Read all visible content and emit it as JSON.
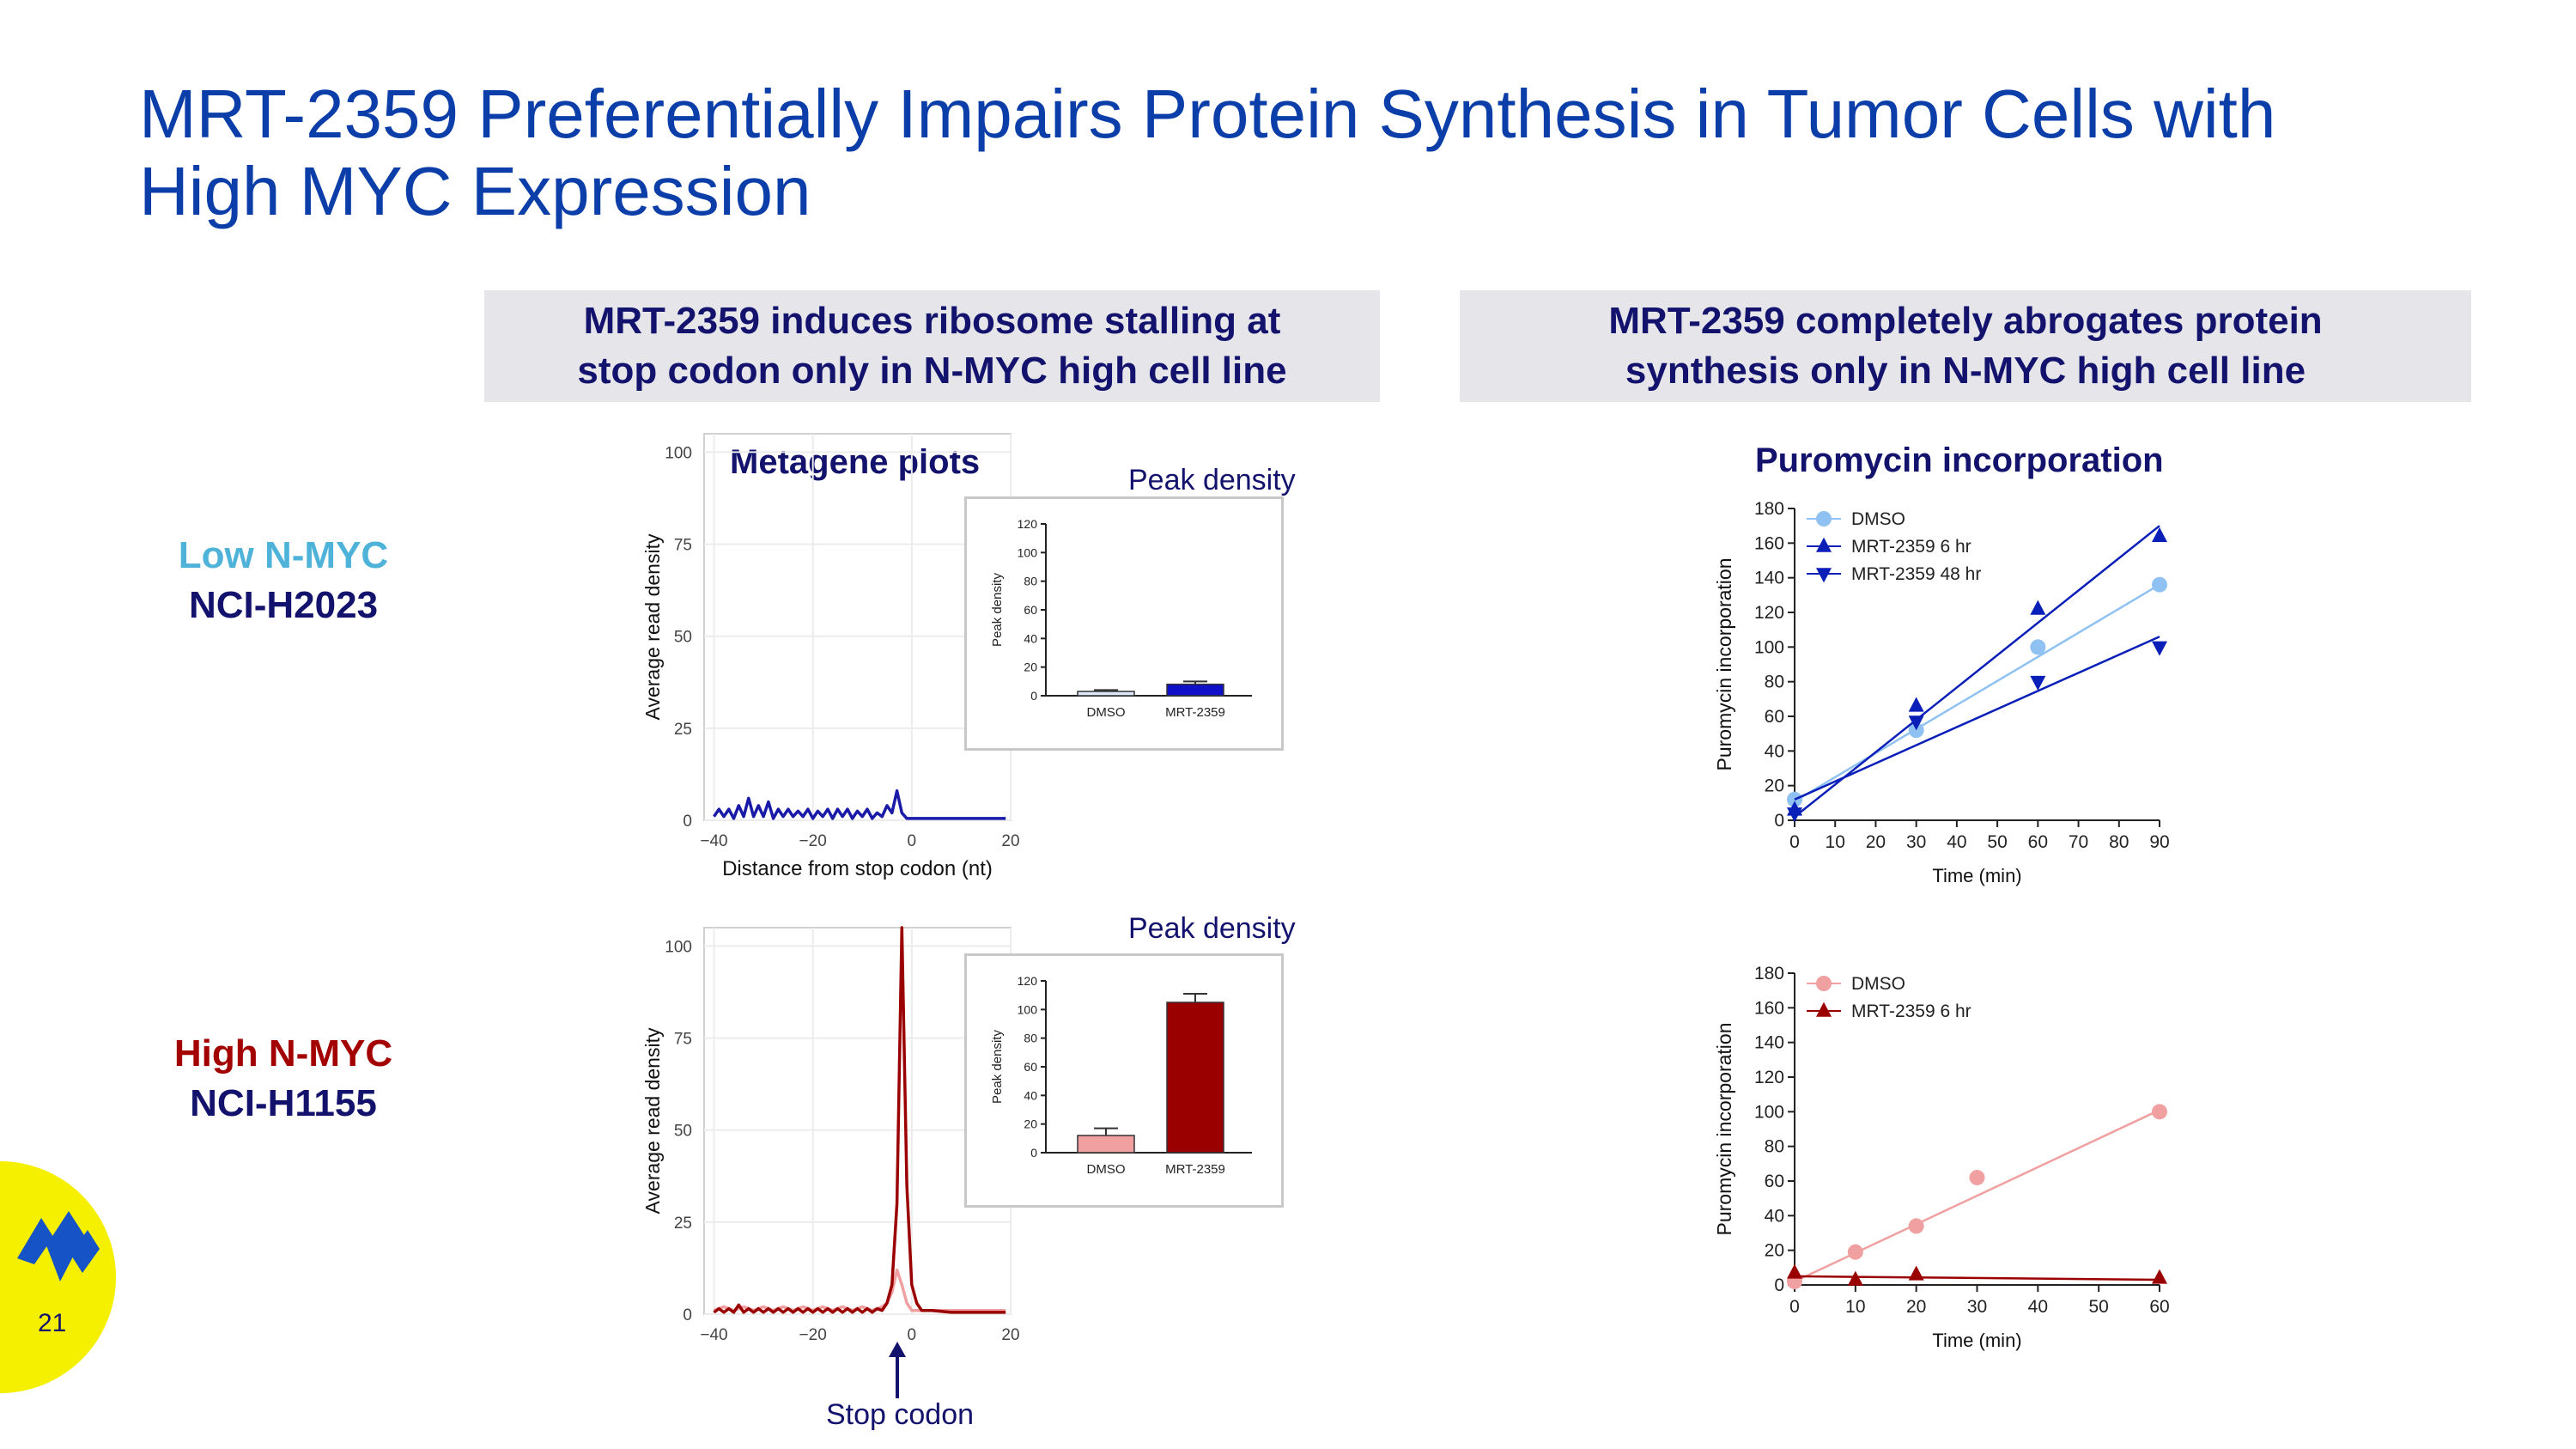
{
  "slide": {
    "title_line1": "MRT-2359 Preferentially Impairs Protein Synthesis in Tumor Cells with",
    "title_line2": "High MYC Expression",
    "page_number": "21",
    "logo_icon": "company-logo-icon"
  },
  "panels": {
    "left_header_line1": "MRT-2359 induces ribosome stalling at",
    "left_header_line2": "stop codon only in N-MYC high cell line",
    "right_header_line1": "MRT-2359 completely abrogates protein",
    "right_header_line2": "synthesis only in N-MYC high cell line"
  },
  "rows": {
    "low_label": "Low N-MYC",
    "low_cell_line": "NCI-H2023",
    "high_label": "High N-MYC",
    "high_cell_line": "NCI-H1155"
  },
  "labels": {
    "metagene_title": "Metagene plots",
    "peak_density_title_top": "Peak density",
    "peak_density_title_bottom": "Peak density",
    "puromycin_title": "Puromycin incorporation",
    "stop_codon_label": "Stop codon"
  },
  "chart_data": [
    {
      "id": "metagene_low",
      "type": "line",
      "title": "Metagene plots",
      "xlabel": "Distance from stop codon (nt)",
      "ylabel": "Average read density",
      "xlim": [
        -42,
        20
      ],
      "ylim": [
        0,
        105
      ],
      "xticks": [
        -40,
        -20,
        0,
        20
      ],
      "yticks": [
        0,
        25,
        50,
        75,
        100
      ],
      "series": [
        {
          "name": "MRT-2359",
          "color": "#1a1aa8",
          "x": [
            -40,
            -39,
            -38,
            -37,
            -36,
            -35,
            -34,
            -33,
            -32,
            -31,
            -30,
            -29,
            -28,
            -27,
            -26,
            -25,
            -24,
            -23,
            -22,
            -21,
            -20,
            -19,
            -18,
            -17,
            -16,
            -15,
            -14,
            -13,
            -12,
            -11,
            -10,
            -9,
            -8,
            -7,
            -6,
            -5,
            -4,
            -3,
            -2,
            -1,
            0,
            1,
            2,
            4,
            8,
            12,
            16,
            19
          ],
          "y": [
            1,
            3,
            1,
            3,
            0.5,
            4,
            1,
            6,
            1,
            4,
            1,
            5,
            0.5,
            3,
            1,
            3,
            1,
            2.5,
            1,
            3,
            0.5,
            2.5,
            1,
            3,
            0.5,
            3,
            1,
            3,
            0.5,
            2.5,
            1,
            3,
            0.5,
            2,
            1,
            4,
            2,
            8,
            2,
            0.5,
            0.5,
            0.5,
            0.5,
            0.5,
            0.5,
            0.5,
            0.5,
            0.5
          ]
        }
      ]
    },
    {
      "id": "metagene_high",
      "type": "line",
      "xlabel": "",
      "ylabel": "Average read density",
      "xlim": [
        -42,
        20
      ],
      "ylim": [
        0,
        105
      ],
      "xticks": [
        -40,
        -20,
        0,
        20
      ],
      "yticks": [
        0,
        25,
        50,
        75,
        100
      ],
      "series": [
        {
          "name": "DMSO",
          "color": "#f0a0a0",
          "x": [
            -40,
            -38,
            -36,
            -34,
            -32,
            -30,
            -28,
            -26,
            -24,
            -22,
            -20,
            -18,
            -16,
            -14,
            -12,
            -10,
            -8,
            -6,
            -5,
            -4,
            -3,
            -2,
            -1,
            0,
            1,
            2,
            4,
            8,
            12,
            16,
            19
          ],
          "y": [
            1,
            2,
            1,
            2,
            1,
            2,
            1,
            2,
            1,
            2,
            1,
            2,
            1,
            2,
            1,
            2,
            1,
            2,
            3,
            6,
            12,
            8,
            3,
            1,
            1,
            1,
            1,
            1,
            1,
            1,
            1
          ]
        },
        {
          "name": "MRT-2359",
          "color": "#9b0000",
          "x": [
            -40,
            -39,
            -38,
            -37,
            -36,
            -35,
            -34,
            -33,
            -32,
            -31,
            -30,
            -29,
            -28,
            -27,
            -26,
            -25,
            -24,
            -23,
            -22,
            -21,
            -20,
            -19,
            -18,
            -17,
            -16,
            -15,
            -14,
            -13,
            -12,
            -11,
            -10,
            -9,
            -8,
            -7,
            -6,
            -5,
            -4,
            -3,
            -2,
            -1,
            0,
            1,
            2,
            4,
            8,
            12,
            16,
            19
          ],
          "y": [
            0.5,
            1.5,
            0.5,
            1.5,
            0.5,
            2.5,
            0.5,
            1.5,
            0.5,
            1.5,
            0.5,
            1.5,
            0.5,
            1.5,
            0.5,
            1.5,
            0.5,
            1.5,
            0.5,
            1.5,
            0.5,
            1.5,
            0.5,
            1.5,
            0.5,
            1.5,
            0.5,
            1.5,
            0.5,
            1.5,
            0.5,
            1.5,
            0.5,
            1.5,
            1,
            3,
            8,
            30,
            105,
            35,
            8,
            3,
            1,
            1,
            0.5,
            0.5,
            0.5,
            0.5
          ]
        }
      ]
    },
    {
      "id": "peak_low",
      "type": "bar",
      "title": "Peak density",
      "ylabel": "Peak density",
      "ylim": [
        0,
        120
      ],
      "yticks": [
        0,
        20,
        40,
        60,
        80,
        100,
        120
      ],
      "categories": [
        "DMSO",
        "MRT-2359"
      ],
      "values": [
        3,
        8
      ],
      "errors": [
        1,
        2
      ],
      "colors": [
        "#dce8f7",
        "#1010c8"
      ]
    },
    {
      "id": "peak_high",
      "type": "bar",
      "title": "Peak density",
      "ylabel": "Peak density",
      "ylim": [
        0,
        120
      ],
      "yticks": [
        0,
        20,
        40,
        60,
        80,
        100,
        120
      ],
      "categories": [
        "DMSO",
        "MRT-2359"
      ],
      "values": [
        12,
        105
      ],
      "errors": [
        5,
        6
      ],
      "colors": [
        "#f0a0a0",
        "#9b0000"
      ]
    },
    {
      "id": "puro_low",
      "type": "scatter",
      "title": "Puromycin incorporation",
      "xlabel": "Time (min)",
      "ylabel": "Puromycin incorporation",
      "xlim": [
        0,
        90
      ],
      "ylim": [
        0,
        180
      ],
      "xticks": [
        0,
        10,
        20,
        30,
        40,
        50,
        60,
        70,
        80,
        90
      ],
      "yticks": [
        0,
        20,
        40,
        60,
        80,
        100,
        120,
        140,
        160,
        180
      ],
      "legend": "top-left",
      "series": [
        {
          "name": "DMSO",
          "color": "#8fc1f2",
          "marker": "circle",
          "x": [
            0,
            30,
            60,
            90
          ],
          "y": [
            12,
            52,
            100,
            136
          ],
          "fit": [
            [
              0,
              11
            ],
            [
              90,
              136
            ]
          ]
        },
        {
          "name": "MRT-2359 6 hr",
          "color": "#0a1fb8",
          "marker": "triangle-up",
          "x": [
            0,
            30,
            60,
            90
          ],
          "y": [
            6,
            66,
            122,
            164
          ],
          "fit": [
            [
              0,
              2
            ],
            [
              90,
              170
            ]
          ]
        },
        {
          "name": "MRT-2359 48 hr",
          "color": "#0a1fb8",
          "marker": "triangle-down",
          "x": [
            0,
            30,
            60,
            90
          ],
          "y": [
            4,
            57,
            80,
            100
          ],
          "fit": [
            [
              0,
              12
            ],
            [
              90,
              106
            ]
          ]
        }
      ]
    },
    {
      "id": "puro_high",
      "type": "scatter",
      "xlabel": "Time (min)",
      "ylabel": "Puromycin incorporation",
      "xlim": [
        0,
        60
      ],
      "ylim": [
        0,
        180
      ],
      "xticks": [
        0,
        10,
        20,
        30,
        40,
        50,
        60
      ],
      "yticks": [
        0,
        20,
        40,
        60,
        80,
        100,
        120,
        140,
        160,
        180
      ],
      "legend": "top-left",
      "series": [
        {
          "name": "DMSO",
          "color": "#f0a0a0",
          "marker": "circle",
          "x": [
            0,
            10,
            20,
            30,
            60
          ],
          "y": [
            2,
            19,
            34,
            62,
            100
          ],
          "fit": [
            [
              0,
              2
            ],
            [
              60,
              101
            ]
          ]
        },
        {
          "name": "MRT-2359 6 hr",
          "color": "#9b0000",
          "marker": "triangle-up",
          "x": [
            0,
            10,
            20,
            60
          ],
          "y": [
            7,
            3,
            6,
            4
          ],
          "fit": [
            [
              0,
              5
            ],
            [
              60,
              3
            ]
          ]
        }
      ]
    }
  ]
}
